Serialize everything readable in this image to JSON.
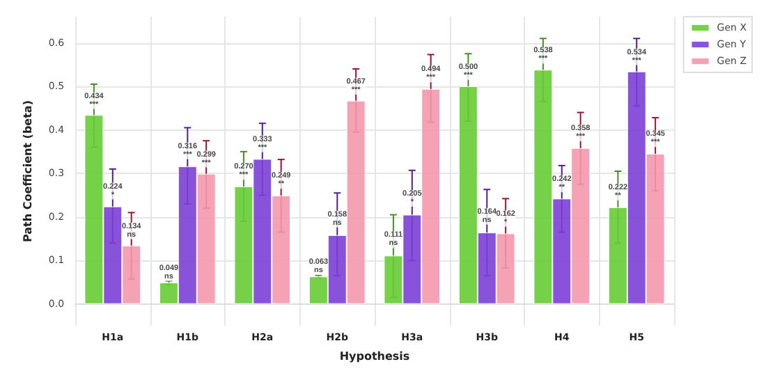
{
  "chart_data": {
    "type": "bar",
    "xlabel": "Hypothesis",
    "ylabel": "Path Coefficient (beta)",
    "categories": [
      "H1a",
      "H1b",
      "H2a",
      "H2b",
      "H3a",
      "H3b",
      "H4",
      "H5"
    ],
    "series": [
      {
        "name": "Gen X",
        "color": "#66cc33",
        "values": [
          0.434,
          0.049,
          0.27,
          0.063,
          0.111,
          0.5,
          0.538,
          0.222
        ],
        "errors": [
          [
            0.36,
            0.505
          ],
          [
            0.045,
            0.053
          ],
          [
            0.19,
            0.35
          ],
          [
            0.06,
            0.066
          ],
          [
            0.015,
            0.205
          ],
          [
            0.42,
            0.575
          ],
          [
            0.465,
            0.61
          ],
          [
            0.14,
            0.305
          ]
        ],
        "value_labels": [
          "0.434\n***",
          "0.049\nns",
          "0.270\n***",
          "0.063\nns",
          "0.111\nns",
          "0.500\n***",
          "0.538\n***",
          "0.222\n**"
        ]
      },
      {
        "name": "Gen Y",
        "color": "#7b3fd6",
        "values": [
          0.224,
          0.316,
          0.333,
          0.158,
          0.205,
          0.164,
          0.242,
          0.534
        ],
        "errors": [
          [
            0.14,
            0.31
          ],
          [
            0.23,
            0.405
          ],
          [
            0.25,
            0.415
          ],
          [
            0.065,
            0.255
          ],
          [
            0.1,
            0.307
          ],
          [
            0.065,
            0.263
          ],
          [
            0.165,
            0.318
          ],
          [
            0.455,
            0.61
          ]
        ],
        "value_labels": [
          "0.224\n*",
          "0.316\n***",
          "0.333\n***",
          "0.158\nns",
          "0.205\n*",
          "0.164\nns",
          "0.242\n**",
          "0.534\n***"
        ]
      },
      {
        "name": "Gen Z",
        "color": "#f498ad",
        "values": [
          0.134,
          0.299,
          0.249,
          0.467,
          0.494,
          0.162,
          0.358,
          0.345
        ],
        "errors": [
          [
            0.057,
            0.21
          ],
          [
            0.22,
            0.375
          ],
          [
            0.165,
            0.332
          ],
          [
            0.395,
            0.54
          ],
          [
            0.418,
            0.573
          ],
          [
            0.083,
            0.242
          ],
          [
            0.275,
            0.44
          ],
          [
            0.26,
            0.428
          ]
        ],
        "value_labels": [
          "0.134\nns",
          "0.299\n***",
          "0.249\n**",
          "0.467\n***",
          "0.494\n***",
          "0.162\n*",
          "0.358\n***",
          "0.345\n***"
        ]
      }
    ],
    "ylim": [
      -0.05,
      0.66
    ],
    "yticks": [
      {
        "value": 0,
        "label": "0.0"
      },
      0.1,
      0.2,
      0.3,
      0.4,
      0.5,
      0.6
    ],
    "grid": true,
    "legend": "top right"
  }
}
